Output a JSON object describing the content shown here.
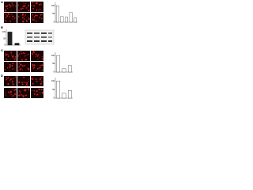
{
  "panels": [
    {
      "label": "A"
    },
    {
      "label": "B"
    },
    {
      "label": "C"
    },
    {
      "label": "D"
    }
  ],
  "chart_data": [
    {
      "type": "bar",
      "values": [
        100,
        35,
        30,
        60,
        25
      ],
      "color": "#ffffff",
      "ylim": [
        0,
        120
      ],
      "yticks": [
        0,
        50,
        100
      ]
    },
    {
      "type": "bar",
      "values": [
        100,
        15
      ],
      "color": "#222222",
      "ylim": [
        0,
        120
      ],
      "yticks": [
        0,
        50,
        100
      ]
    },
    {
      "type": "bar",
      "values": [
        100,
        20,
        40
      ],
      "color": "#ffffff",
      "ylim": [
        0,
        120
      ],
      "yticks": [
        0,
        50,
        100
      ]
    },
    {
      "type": "bar",
      "values": [
        100,
        30,
        45
      ],
      "color": "#ffffff",
      "ylim": [
        0,
        120
      ],
      "yticks": [
        0,
        50,
        100
      ]
    }
  ]
}
